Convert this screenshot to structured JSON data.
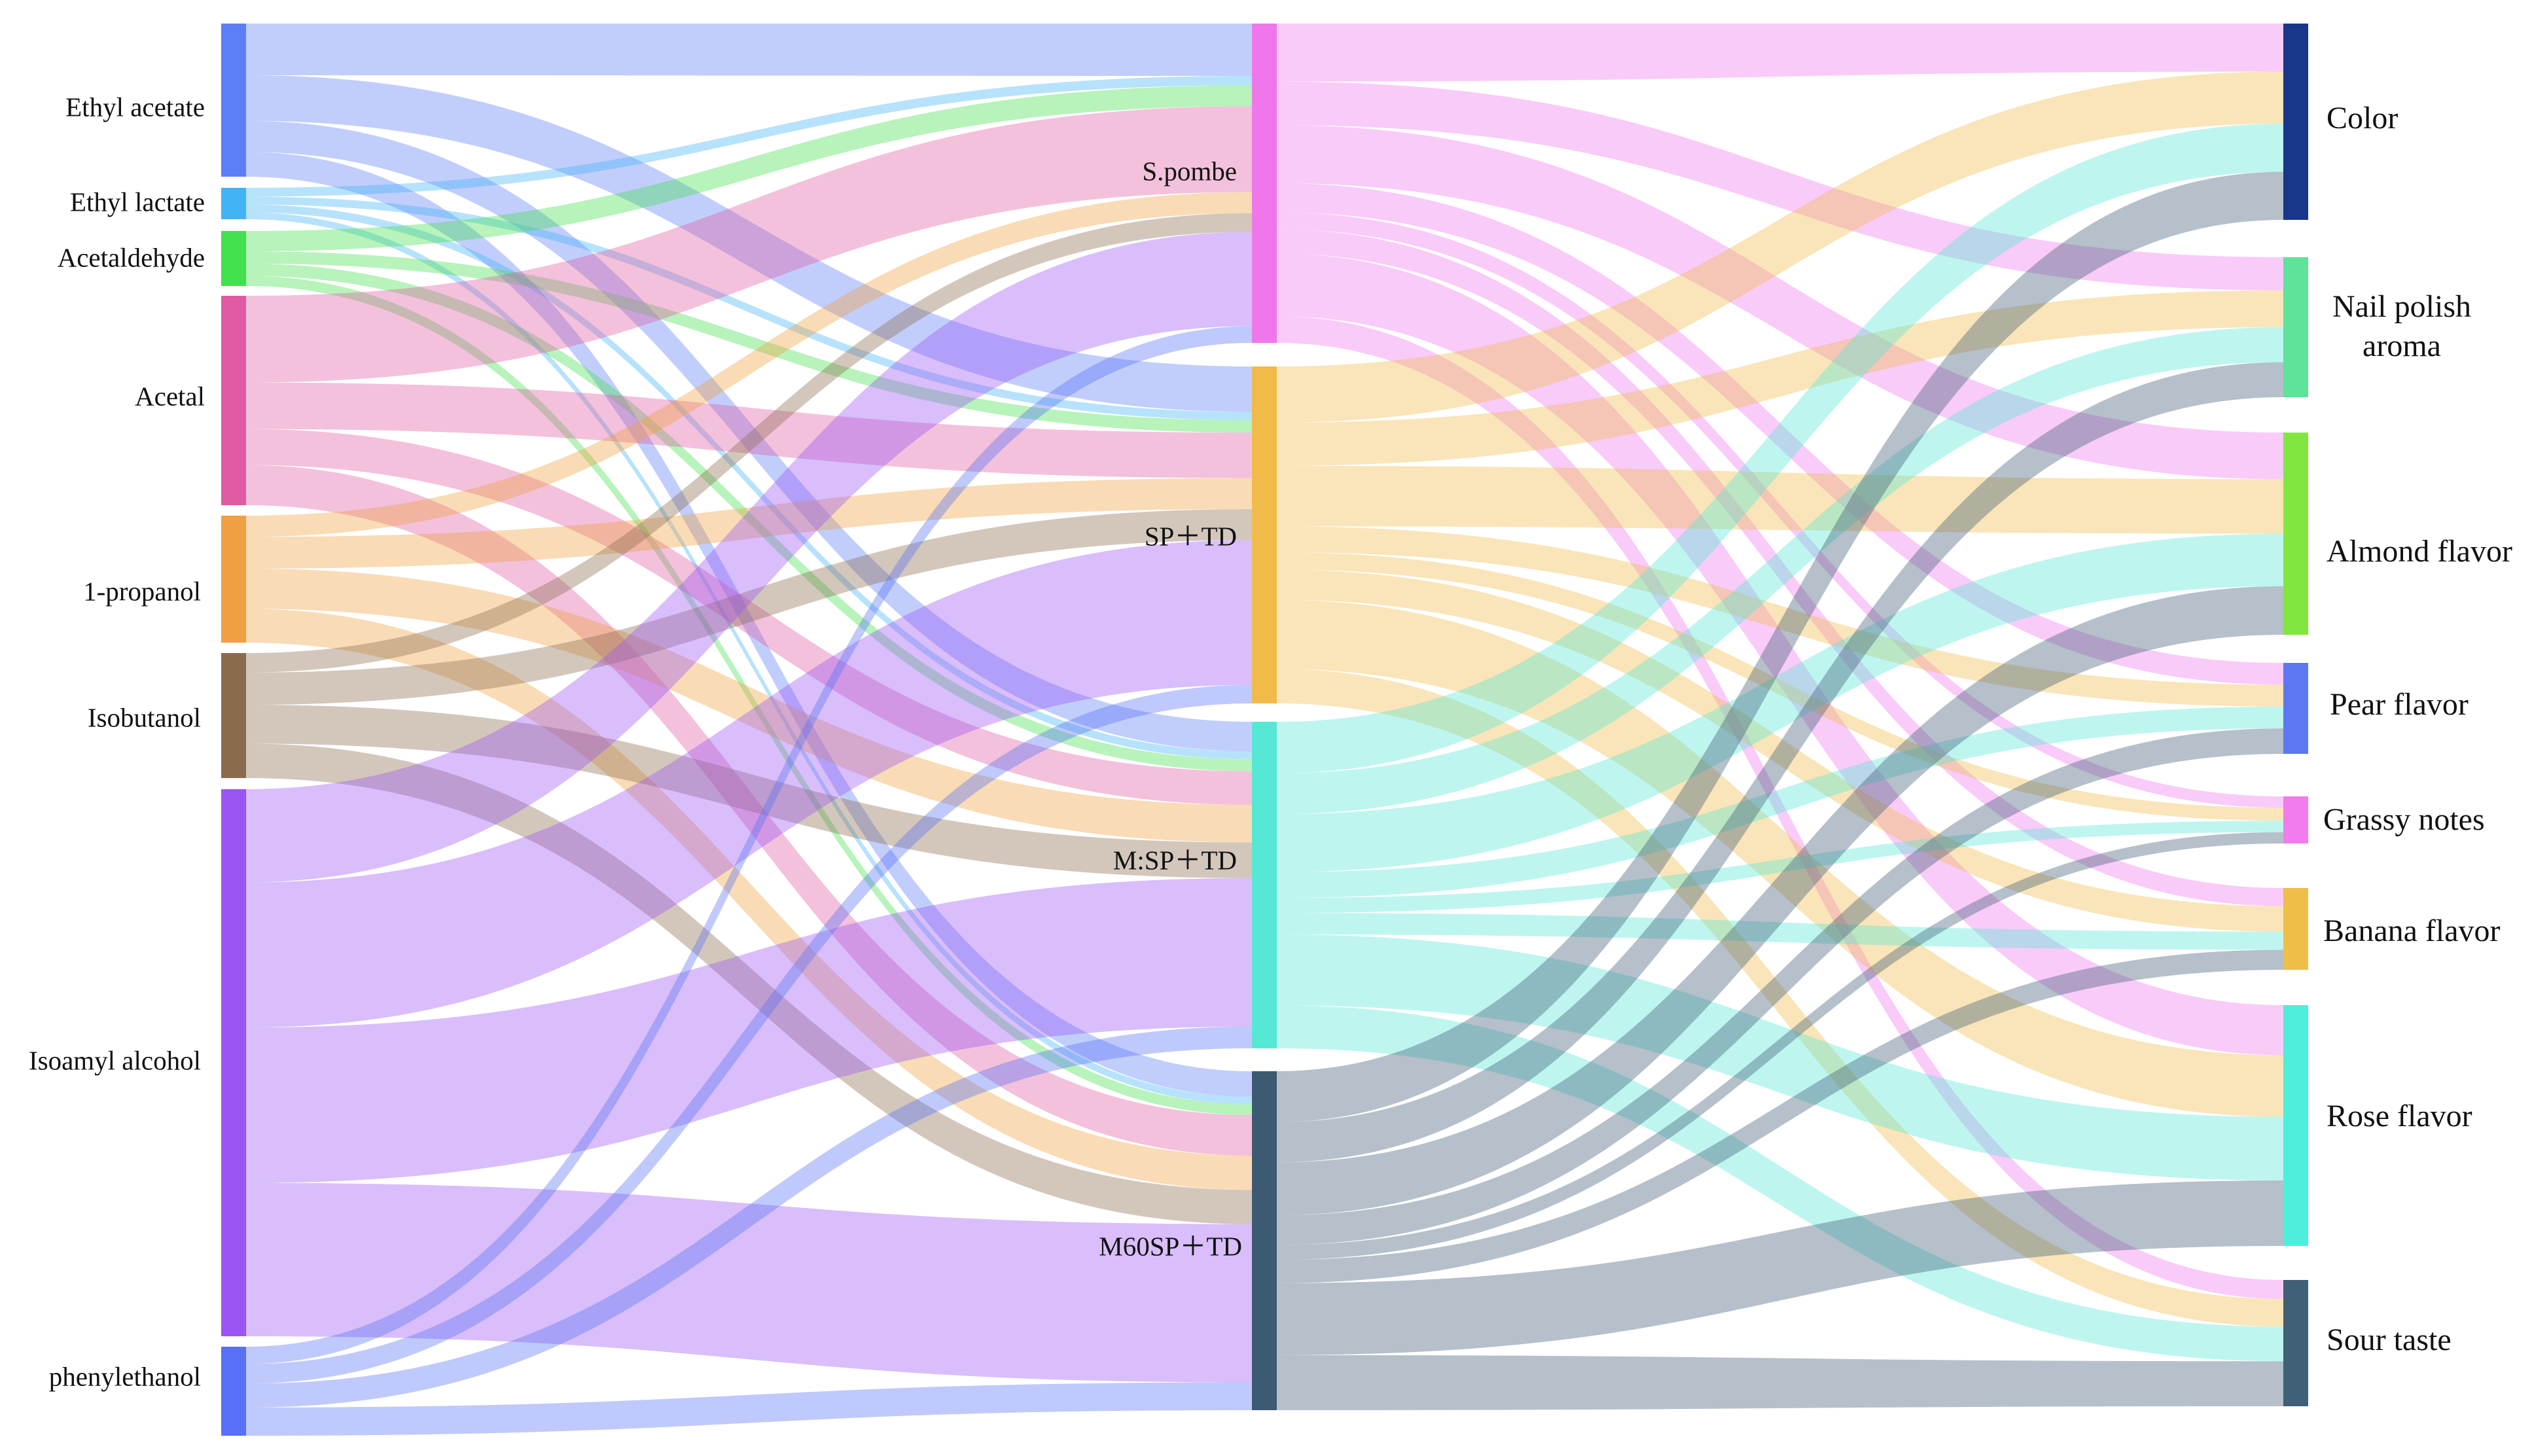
{
  "diagram": {
    "type": "sankey",
    "link_opacity": 0.38,
    "columns": [
      {
        "key": "compound",
        "nodes": [
          {
            "id": "ethyl-acetate",
            "label": "Ethyl acetate",
            "color": "#5b7ff7"
          },
          {
            "id": "ethyl-lactate",
            "label": "Ethyl lactate",
            "color": "#42b3f5"
          },
          {
            "id": "acetaldehyde",
            "label": "Acetaldehyde",
            "color": "#42e04d"
          },
          {
            "id": "acetal",
            "label": "Acetal",
            "color": "#e05ba3"
          },
          {
            "id": "propanol",
            "label": "1-propanol",
            "color": "#f0a040"
          },
          {
            "id": "isobutanol",
            "label": "Isobutanol",
            "color": "#8b6b4e"
          },
          {
            "id": "isoamyl",
            "label": "Isoamyl alcohol",
            "color": "#9b55f5"
          },
          {
            "id": "phenylethanol",
            "label": "phenylethanol",
            "color": "#5870f5"
          }
        ]
      },
      {
        "key": "treatment",
        "nodes": [
          {
            "id": "spombe",
            "label": "S.pombe",
            "color": "#f076ec"
          },
          {
            "id": "sptd",
            "label": "SP＋TD",
            "color": "#f0bb48"
          },
          {
            "id": "msptd",
            "label": "M:SP＋TD",
            "color": "#55e8d4"
          },
          {
            "id": "m60sptd",
            "label": "M60SP＋TD",
            "color": "#3d5a73"
          }
        ]
      },
      {
        "key": "attribute",
        "nodes": [
          {
            "id": "color",
            "label": "Color",
            "color": "#18368a"
          },
          {
            "id": "nail",
            "label": "Nail polish aroma",
            "color": "#5ee39a"
          },
          {
            "id": "almond",
            "label": "Almond flavor",
            "color": "#82e640"
          },
          {
            "id": "pear",
            "label": "Pear flavor",
            "color": "#5b78f2"
          },
          {
            "id": "grassy",
            "label": "Grassy notes",
            "color": "#f27ced"
          },
          {
            "id": "banana",
            "label": "Banana flavor",
            "color": "#f0be48"
          },
          {
            "id": "rose",
            "label": "Rose flavor",
            "color": "#4eeedc"
          },
          {
            "id": "sour",
            "label": "Sour taste",
            "color": "#3f6076"
          }
        ]
      }
    ],
    "links": [
      {
        "source": "ethyl-acetate",
        "target": "spombe",
        "value": 2.5,
        "color": "#5b7ff7"
      },
      {
        "source": "ethyl-acetate",
        "target": "sptd",
        "value": 2.2,
        "color": "#5b7ff7"
      },
      {
        "source": "ethyl-acetate",
        "target": "msptd",
        "value": 1.5,
        "color": "#5b7ff7"
      },
      {
        "source": "ethyl-acetate",
        "target": "m60sptd",
        "value": 1.2,
        "color": "#5b7ff7"
      },
      {
        "source": "ethyl-lactate",
        "target": "spombe",
        "value": 0.45,
        "color": "#42b3f5"
      },
      {
        "source": "ethyl-lactate",
        "target": "sptd",
        "value": 0.4,
        "color": "#42b3f5"
      },
      {
        "source": "ethyl-lactate",
        "target": "msptd",
        "value": 0.4,
        "color": "#42b3f5"
      },
      {
        "source": "ethyl-lactate",
        "target": "m60sptd",
        "value": 0.35,
        "color": "#42b3f5"
      },
      {
        "source": "acetaldehyde",
        "target": "spombe",
        "value": 1.0,
        "color": "#42e04d"
      },
      {
        "source": "acetaldehyde",
        "target": "sptd",
        "value": 0.6,
        "color": "#42e04d"
      },
      {
        "source": "acetaldehyde",
        "target": "msptd",
        "value": 0.6,
        "color": "#42e04d"
      },
      {
        "source": "acetaldehyde",
        "target": "m60sptd",
        "value": 0.5,
        "color": "#42e04d"
      },
      {
        "source": "acetal",
        "target": "spombe",
        "value": 4.1,
        "color": "#e05ba3"
      },
      {
        "source": "acetal",
        "target": "sptd",
        "value": 2.2,
        "color": "#e05ba3"
      },
      {
        "source": "acetal",
        "target": "msptd",
        "value": 1.7,
        "color": "#e05ba3"
      },
      {
        "source": "acetal",
        "target": "m60sptd",
        "value": 1.9,
        "color": "#e05ba3"
      },
      {
        "source": "propanol",
        "target": "spombe",
        "value": 1.0,
        "color": "#f0a040"
      },
      {
        "source": "propanol",
        "target": "sptd",
        "value": 1.5,
        "color": "#f0a040"
      },
      {
        "source": "propanol",
        "target": "msptd",
        "value": 1.9,
        "color": "#f0a040"
      },
      {
        "source": "propanol",
        "target": "m60sptd",
        "value": 1.6,
        "color": "#f0a040"
      },
      {
        "source": "isobutanol",
        "target": "spombe",
        "value": 0.9,
        "color": "#8b6b4e"
      },
      {
        "source": "isobutanol",
        "target": "sptd",
        "value": 1.5,
        "color": "#8b6b4e"
      },
      {
        "source": "isobutanol",
        "target": "msptd",
        "value": 1.8,
        "color": "#8b6b4e"
      },
      {
        "source": "isobutanol",
        "target": "m60sptd",
        "value": 1.6,
        "color": "#8b6b4e"
      },
      {
        "source": "isoamyl",
        "target": "spombe",
        "value": 4.5,
        "color": "#9b55f5"
      },
      {
        "source": "isoamyl",
        "target": "sptd",
        "value": 7.0,
        "color": "#9b55f5"
      },
      {
        "source": "isoamyl",
        "target": "msptd",
        "value": 7.5,
        "color": "#9b55f5"
      },
      {
        "source": "isoamyl",
        "target": "m60sptd",
        "value": 7.4,
        "color": "#9b55f5"
      },
      {
        "source": "phenylethanol",
        "target": "spombe",
        "value": 0.8,
        "color": "#5870f5"
      },
      {
        "source": "phenylethanol",
        "target": "sptd",
        "value": 0.9,
        "color": "#5870f5"
      },
      {
        "source": "phenylethanol",
        "target": "msptd",
        "value": 1.1,
        "color": "#5870f5"
      },
      {
        "source": "phenylethanol",
        "target": "m60sptd",
        "value": 1.3,
        "color": "#5870f5"
      },
      {
        "source": "spombe",
        "target": "color",
        "value": 2.4,
        "color": "#f076ec"
      },
      {
        "source": "spombe",
        "target": "nail",
        "value": 1.8,
        "color": "#f076ec"
      },
      {
        "source": "spombe",
        "target": "almond",
        "value": 2.4,
        "color": "#f076ec"
      },
      {
        "source": "spombe",
        "target": "pear",
        "value": 1.2,
        "color": "#f076ec"
      },
      {
        "source": "spombe",
        "target": "grassy",
        "value": 0.7,
        "color": "#f076ec"
      },
      {
        "source": "spombe",
        "target": "banana",
        "value": 1.0,
        "color": "#f076ec"
      },
      {
        "source": "spombe",
        "target": "rose",
        "value": 2.6,
        "color": "#f076ec"
      },
      {
        "source": "spombe",
        "target": "sour",
        "value": 1.1,
        "color": "#f076ec"
      },
      {
        "source": "sptd",
        "target": "color",
        "value": 2.6,
        "color": "#f0bb48"
      },
      {
        "source": "sptd",
        "target": "nail",
        "value": 2.0,
        "color": "#f0bb48"
      },
      {
        "source": "sptd",
        "target": "almond",
        "value": 2.8,
        "color": "#f0bb48"
      },
      {
        "source": "sptd",
        "target": "pear",
        "value": 1.2,
        "color": "#f0bb48"
      },
      {
        "source": "sptd",
        "target": "grassy",
        "value": 0.8,
        "color": "#f0bb48"
      },
      {
        "source": "sptd",
        "target": "banana",
        "value": 1.4,
        "color": "#f0bb48"
      },
      {
        "source": "sptd",
        "target": "rose",
        "value": 3.2,
        "color": "#f0bb48"
      },
      {
        "source": "sptd",
        "target": "sour",
        "value": 1.6,
        "color": "#f0bb48"
      },
      {
        "source": "msptd",
        "target": "color",
        "value": 2.4,
        "color": "#55e8d4"
      },
      {
        "source": "msptd",
        "target": "nail",
        "value": 1.9,
        "color": "#55e8d4"
      },
      {
        "source": "msptd",
        "target": "almond",
        "value": 2.7,
        "color": "#55e8d4"
      },
      {
        "source": "msptd",
        "target": "pear",
        "value": 1.2,
        "color": "#55e8d4"
      },
      {
        "source": "msptd",
        "target": "grassy",
        "value": 0.7,
        "color": "#55e8d4"
      },
      {
        "source": "msptd",
        "target": "banana",
        "value": 1.0,
        "color": "#55e8d4"
      },
      {
        "source": "msptd",
        "target": "rose",
        "value": 3.3,
        "color": "#55e8d4"
      },
      {
        "source": "msptd",
        "target": "sour",
        "value": 2.0,
        "color": "#55e8d4"
      },
      {
        "source": "m60sptd",
        "target": "color",
        "value": 2.4,
        "color": "#3d5a73"
      },
      {
        "source": "m60sptd",
        "target": "nail",
        "value": 1.9,
        "color": "#3d5a73"
      },
      {
        "source": "m60sptd",
        "target": "almond",
        "value": 2.5,
        "color": "#3d5a73"
      },
      {
        "source": "m60sptd",
        "target": "pear",
        "value": 1.4,
        "color": "#3d5a73"
      },
      {
        "source": "m60sptd",
        "target": "grassy",
        "value": 0.7,
        "color": "#3d5a73"
      },
      {
        "source": "m60sptd",
        "target": "banana",
        "value": 1.1,
        "color": "#3d5a73"
      },
      {
        "source": "m60sptd",
        "target": "rose",
        "value": 3.4,
        "color": "#3d5a73"
      },
      {
        "source": "m60sptd",
        "target": "sour",
        "value": 2.6,
        "color": "#3d5a73"
      }
    ]
  }
}
